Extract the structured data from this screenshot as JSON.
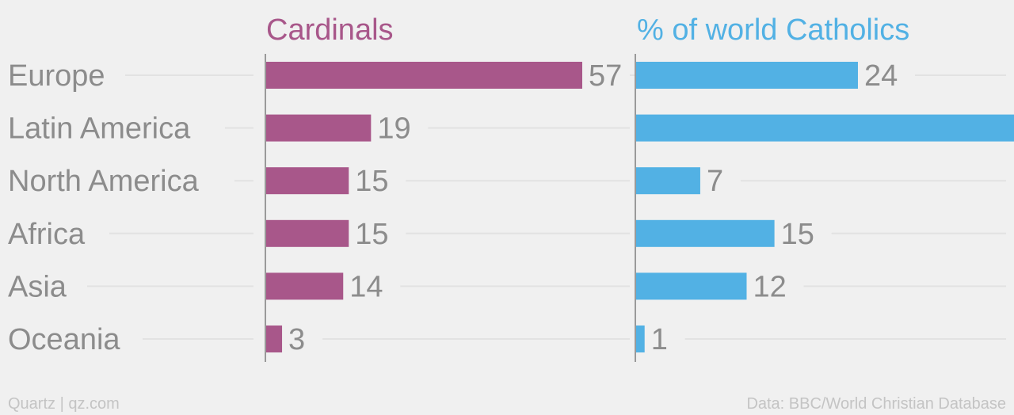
{
  "footer": {
    "credit": "Quartz | qz.com",
    "source": "Data: BBC/World Christian Database"
  },
  "colors": {
    "cardinals": "#a8578a",
    "catholics": "#52b1e4",
    "text": "#8c8c8c",
    "grid": "#e2e2e2",
    "axis": "#9a9a9a",
    "background": "#f0f0f0"
  },
  "chart_data": {
    "type": "bar",
    "orientation": "horizontal",
    "categories": [
      "Europe",
      "Latin America",
      "North America",
      "Africa",
      "Asia",
      "Oceania"
    ],
    "panels": [
      {
        "title": "Cardinals",
        "color": "#a8578a",
        "values": [
          57,
          19,
          15,
          15,
          14,
          3
        ],
        "xlim": [
          0,
          70
        ]
      },
      {
        "title": "% of world Catholics",
        "color": "#52b1e4",
        "values": [
          24,
          41,
          7,
          15,
          12,
          1
        ],
        "xlim": [
          0,
          59
        ]
      }
    ],
    "grid": true,
    "legend": "none"
  }
}
